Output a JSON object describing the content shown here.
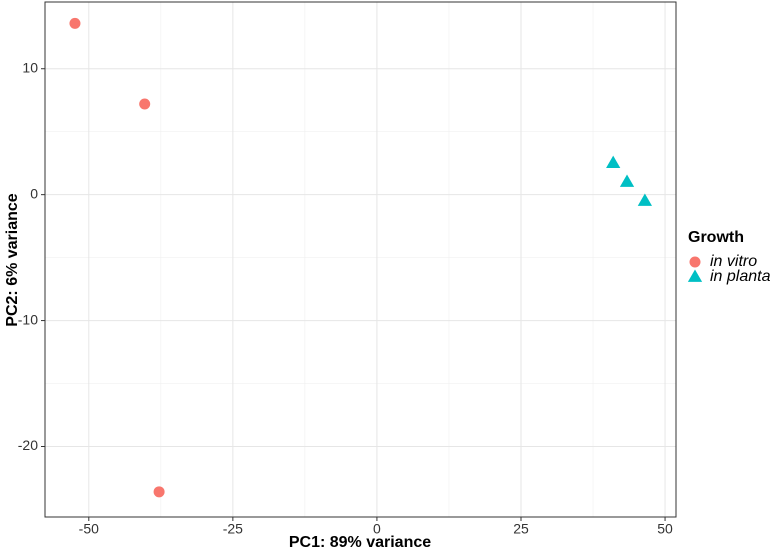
{
  "chart_data": {
    "type": "scatter",
    "xlabel": "PC1: 89% variance",
    "ylabel": "PC2: 6% variance",
    "legend_title": "Growth",
    "legend_position": "right",
    "grid": true,
    "xlim": [
      -57.6,
      51.9
    ],
    "ylim": [
      -25.6,
      15.3
    ],
    "xticks": [
      -50,
      -25,
      0,
      25,
      50
    ],
    "yticks": [
      -20,
      -10,
      0,
      10
    ],
    "series": [
      {
        "name": "in vitro",
        "color": "#F8766D",
        "marker": "circle",
        "x": [
          -52.4,
          -40.3,
          -37.8
        ],
        "y": [
          13.6,
          7.2,
          -23.6
        ]
      },
      {
        "name": "in planta",
        "color": "#00BFC4",
        "marker": "triangle",
        "x": [
          41.0,
          43.4,
          46.5
        ],
        "y": [
          2.5,
          1.0,
          -0.5
        ]
      }
    ]
  }
}
